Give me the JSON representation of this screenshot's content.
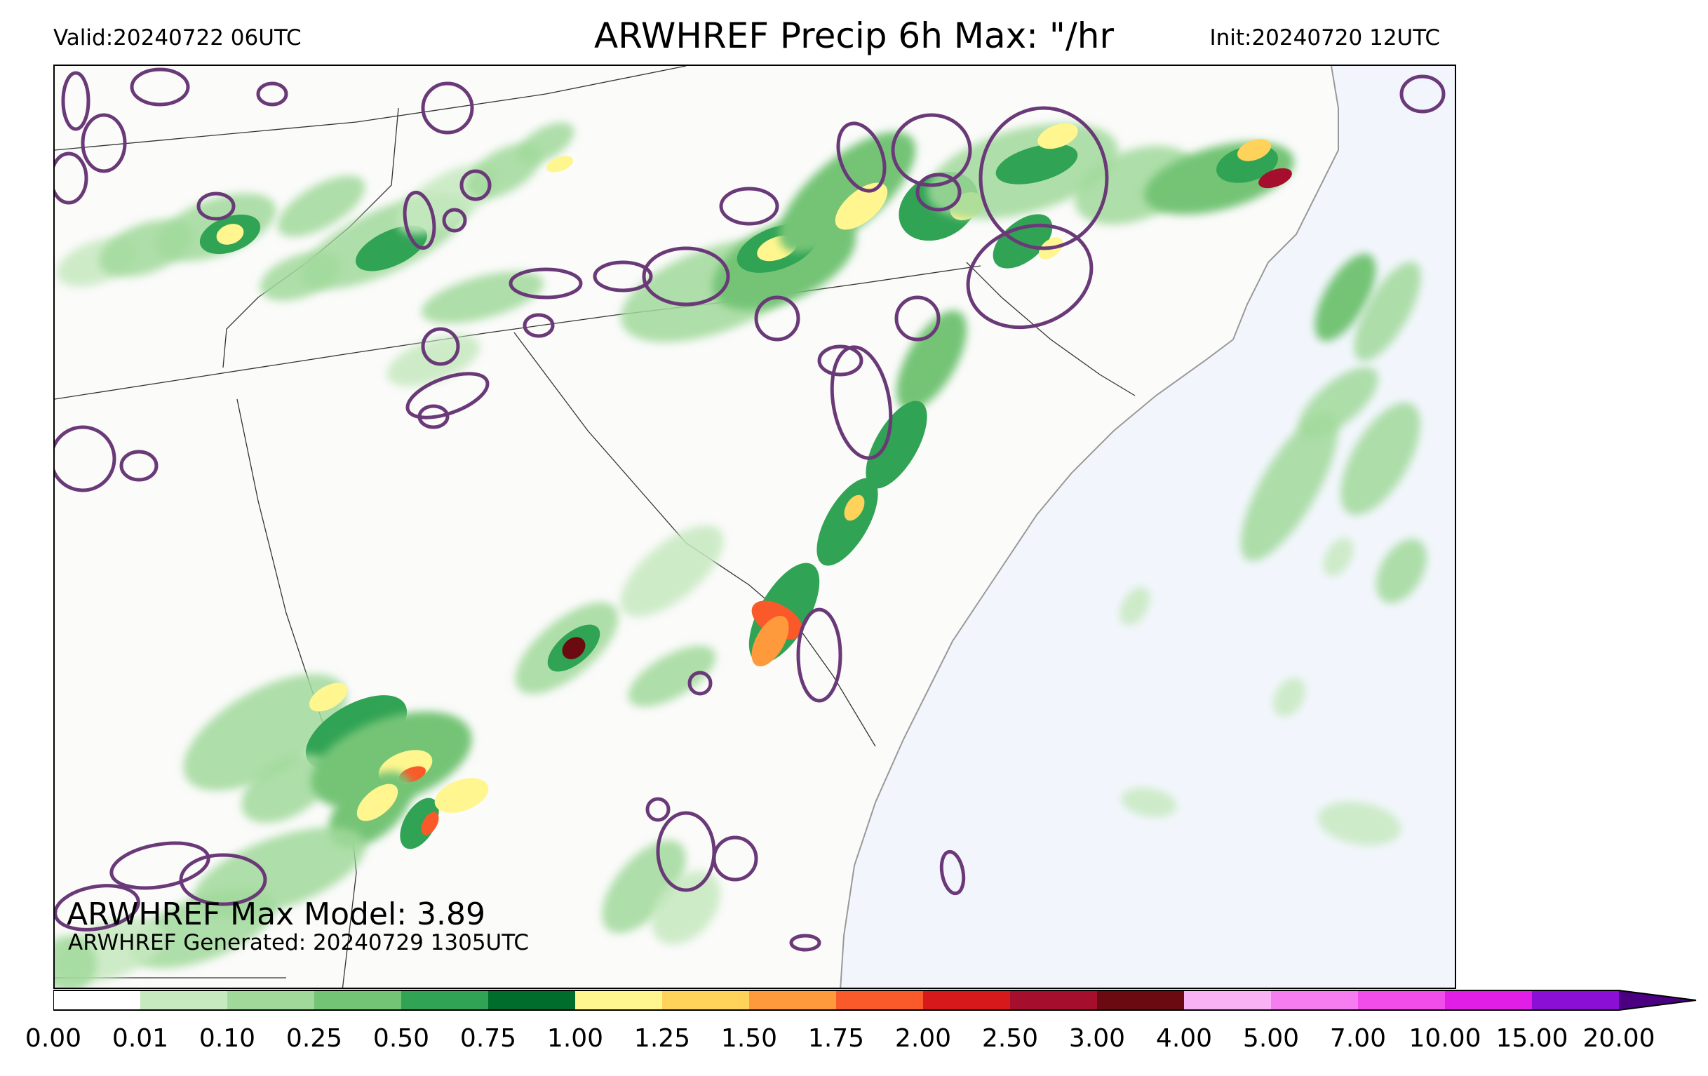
{
  "header": {
    "valid": "Valid:20240722 06UTC",
    "title": "ARWHREF Precip 6h Max: \"/hr",
    "init": "Init:20240720 12UTC"
  },
  "annotations": {
    "max_model": "ARWHREF Max Model: 3.89",
    "generated": "ARWHREF Generated: 20240729 1305UTC"
  },
  "colors": {
    "land": "#fbfbfa",
    "ocean": "#f2f6fc",
    "border": "#333333",
    "contour": "#6a3a78"
  },
  "colorbar": {
    "ticks": [
      "0.00",
      "0.01",
      "0.10",
      "0.25",
      "0.50",
      "0.75",
      "1.00",
      "1.25",
      "1.50",
      "1.75",
      "2.00",
      "2.50",
      "3.00",
      "4.00",
      "5.00",
      "7.00",
      "10.00",
      "15.00",
      "20.00"
    ],
    "colors": [
      "#ffffff",
      "#c7e9c0",
      "#a1d99b",
      "#74c476",
      "#31a354",
      "#006d2c",
      "#fff68f",
      "#ffd25a",
      "#ff9a3c",
      "#fa5a2a",
      "#d7191c",
      "#a50f2d",
      "#6b0a10",
      "#f9b3f5",
      "#f57df0",
      "#f04deb",
      "#e01ee6",
      "#8b0fd4"
    ],
    "extend_color": "#4b0082"
  }
}
